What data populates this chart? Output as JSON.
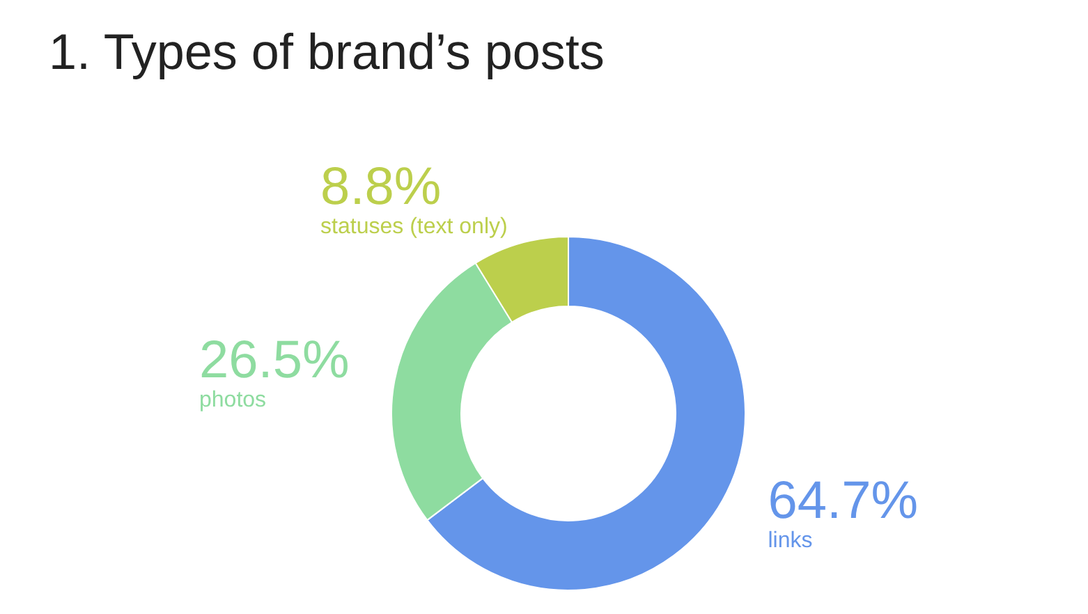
{
  "chart_data": {
    "type": "donut",
    "title": "1. Types of brand’s posts",
    "categories": [
      "links",
      "photos",
      "statuses (text only)"
    ],
    "values": [
      64.7,
      26.5,
      8.8
    ],
    "colors": [
      "#6495ea",
      "#8edca0",
      "#bccf4c"
    ],
    "value_labels": [
      "64.7%",
      "26.5%",
      "8.8%"
    ]
  }
}
